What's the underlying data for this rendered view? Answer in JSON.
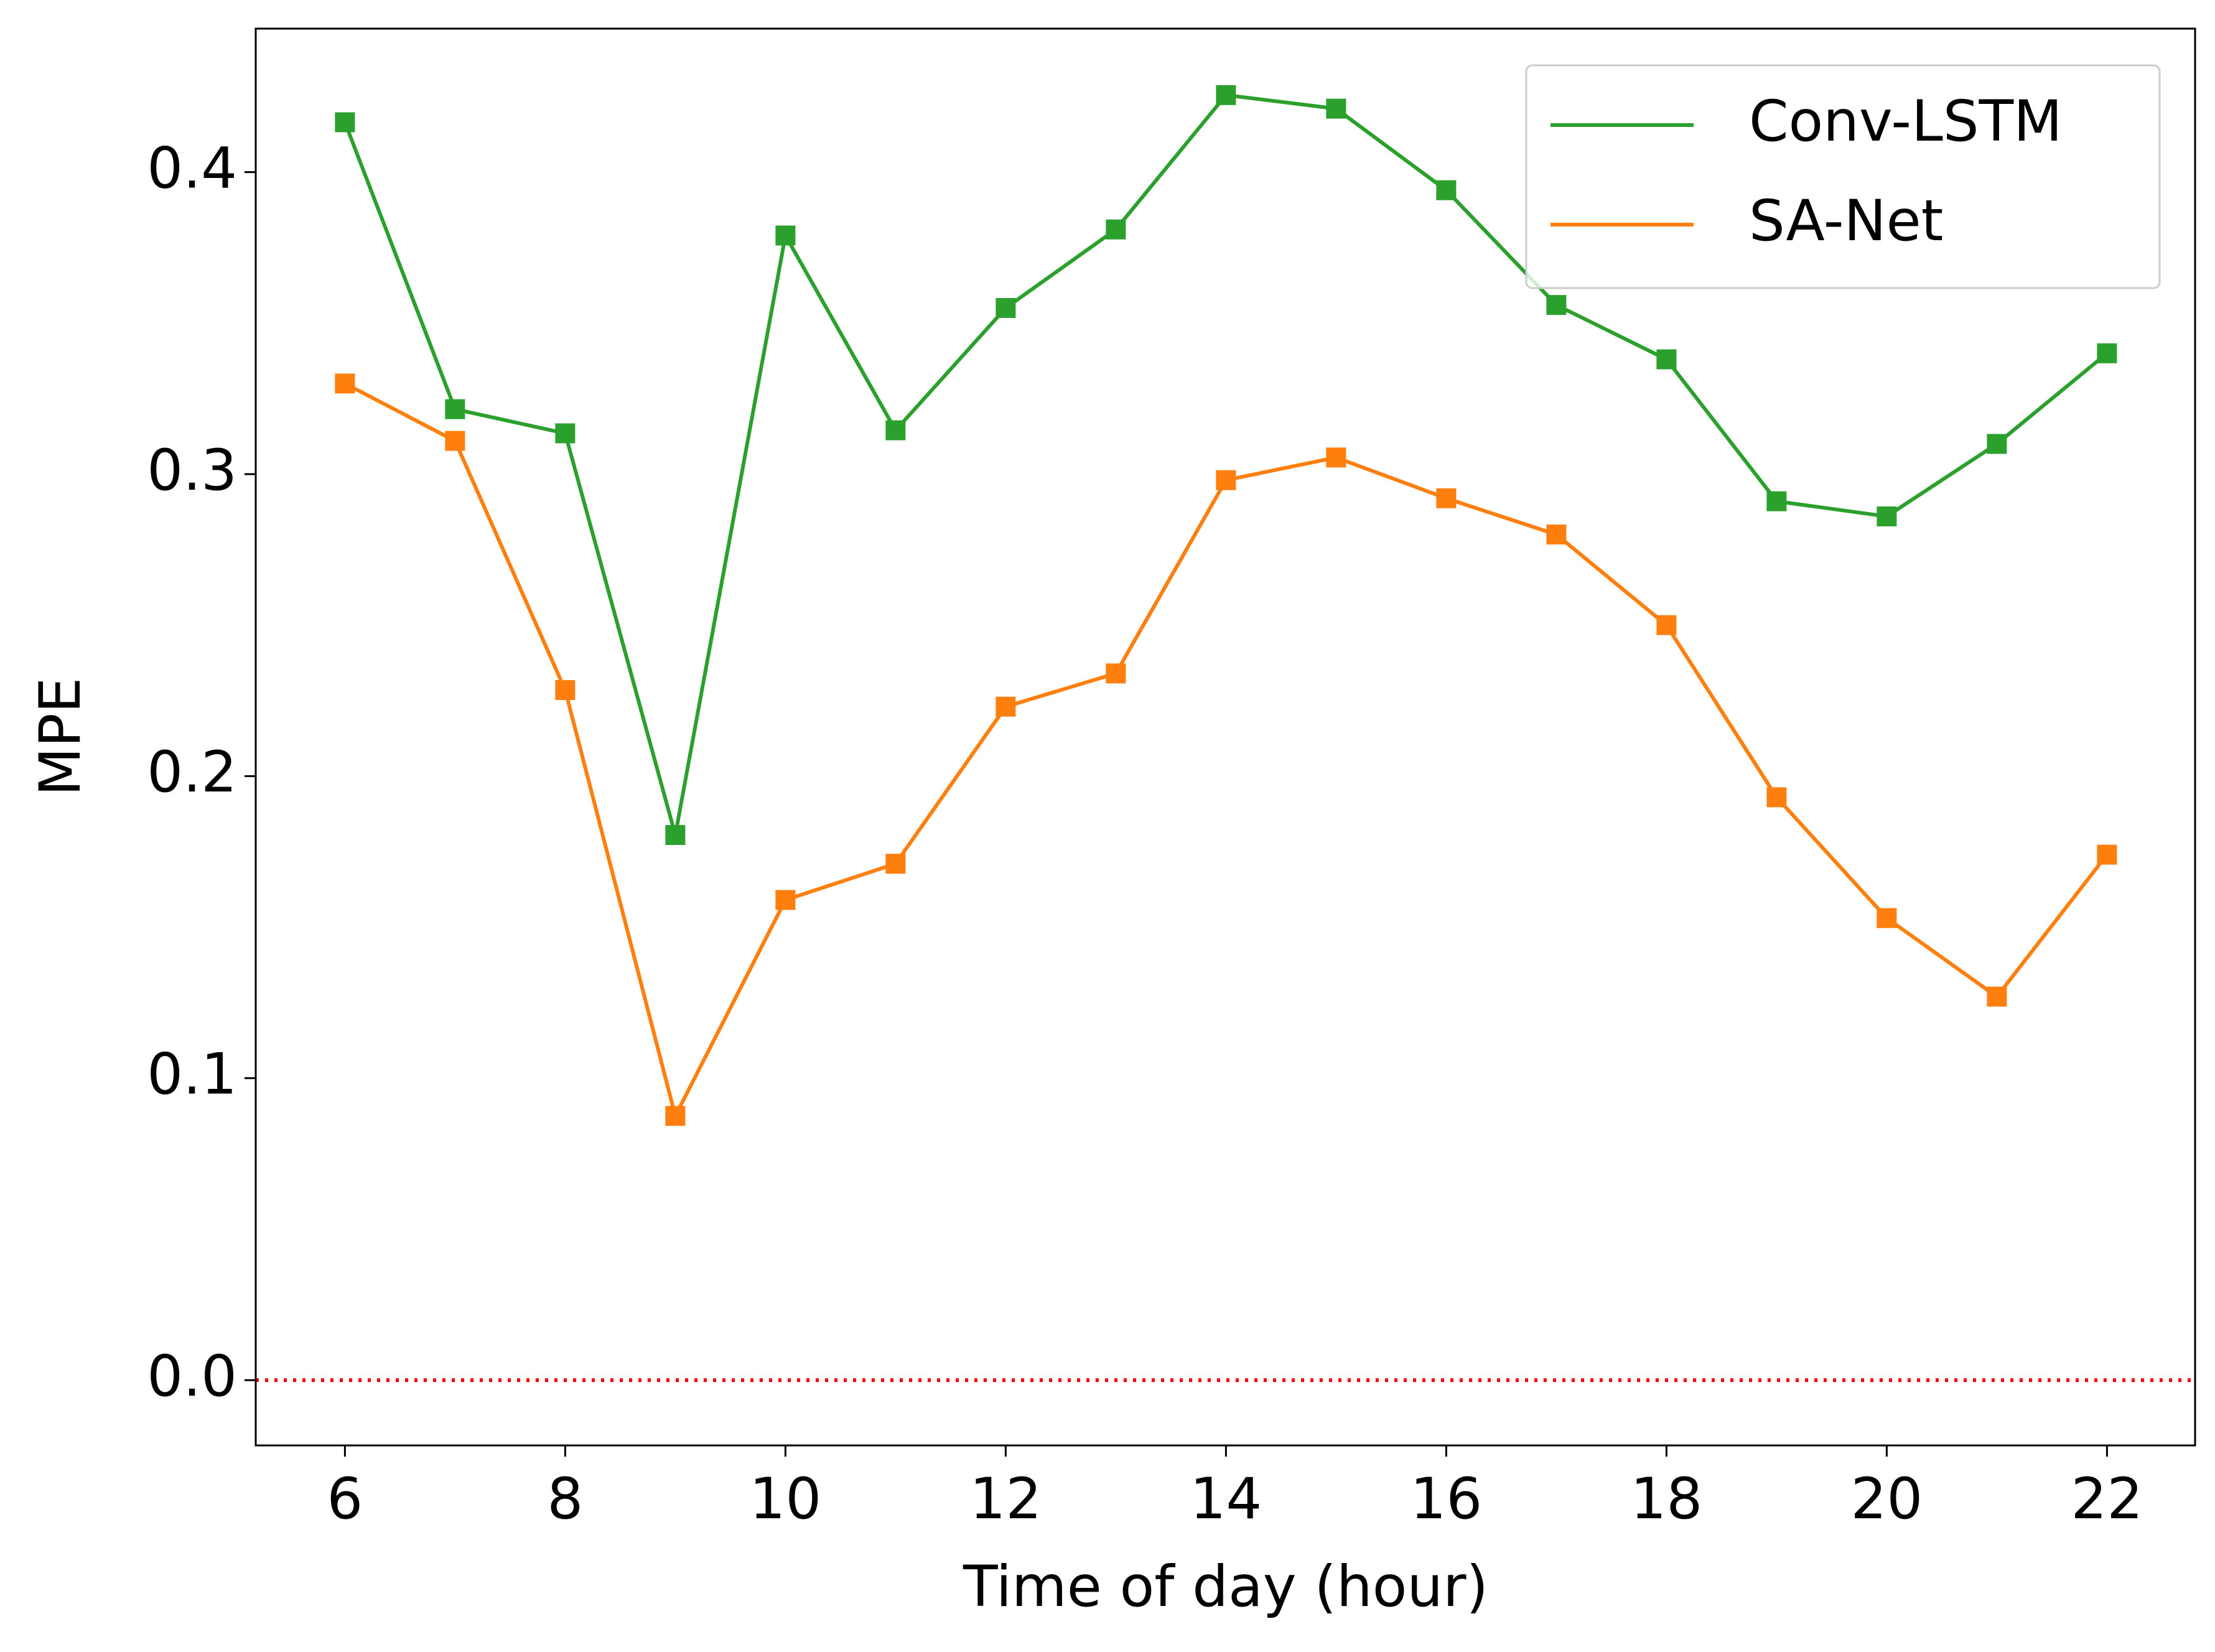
{
  "chart_data": {
    "type": "line",
    "xlabel": "Time of day (hour)",
    "ylabel": "MPE",
    "x": [
      6,
      7,
      8,
      9,
      10,
      11,
      12,
      13,
      14,
      15,
      16,
      17,
      18,
      19,
      20,
      21,
      22
    ],
    "series": [
      {
        "name": "Conv-LSTM",
        "color": "#2ca02c",
        "values": [
          0.4165,
          0.3215,
          0.3135,
          0.1805,
          0.379,
          0.3145,
          0.355,
          0.381,
          0.4255,
          0.421,
          0.394,
          0.356,
          0.338,
          0.291,
          0.286,
          0.31,
          0.34
        ]
      },
      {
        "name": "SA-Net",
        "color": "#ff7f0e",
        "values": [
          0.33,
          0.311,
          0.2285,
          0.0875,
          0.159,
          0.171,
          0.223,
          0.234,
          0.298,
          0.3055,
          0.292,
          0.28,
          0.25,
          0.193,
          0.153,
          0.127,
          0.174
        ]
      }
    ],
    "xlim": [
      5.19,
      22.8
    ],
    "ylim": [
      -0.0216,
      0.4475
    ],
    "xticks": [
      6,
      8,
      10,
      12,
      14,
      16,
      18,
      20,
      22
    ],
    "yticks": [
      {
        "value": 0,
        "label": "0.0"
      },
      0.1,
      0.2,
      0.3,
      0.4
    ],
    "reference_line": {
      "value": 0,
      "color": "#ff0000"
    },
    "legend": "upper right",
    "grid": false
  }
}
